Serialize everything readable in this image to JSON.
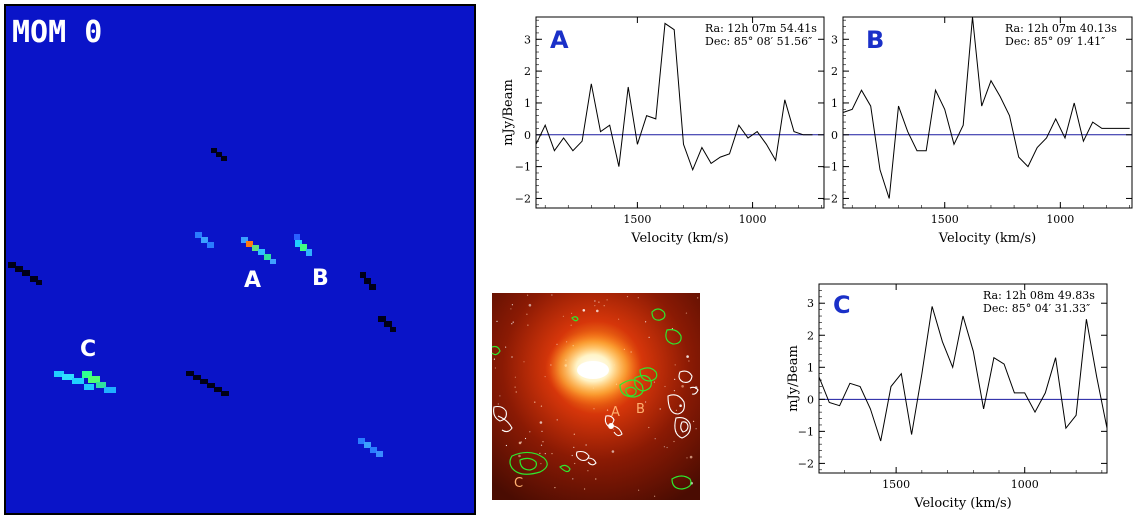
{
  "mom_map": {
    "title": "MOM 0",
    "labels": [
      "A",
      "B",
      "C"
    ],
    "background": "#0a14c8"
  },
  "optical": {
    "labels": [
      "A",
      "B",
      "C"
    ]
  },
  "chart_data": [
    {
      "type": "line",
      "panel": "A",
      "xlabel": "Velocity (km/s)",
      "ylabel": "mJy/Beam",
      "xlim": [
        1940,
        690
      ],
      "ylim": [
        -2.3,
        3.7
      ],
      "xticks": [
        1500,
        1000
      ],
      "yticks": [
        -2,
        -1,
        0,
        1,
        2,
        3
      ],
      "coord_ra": "Ra: 12h 07m 54.41s",
      "coord_dec": "Dec: 85° 08′ 51.56″",
      "x": [
        1940,
        1900,
        1860,
        1820,
        1780,
        1740,
        1700,
        1660,
        1620,
        1580,
        1540,
        1500,
        1460,
        1420,
        1380,
        1340,
        1300,
        1260,
        1220,
        1180,
        1140,
        1100,
        1060,
        1020,
        980,
        940,
        900,
        860,
        820,
        780,
        740
      ],
      "values": [
        -0.3,
        0.3,
        -0.5,
        -0.1,
        -0.5,
        -0.2,
        1.6,
        0.1,
        0.3,
        -1.0,
        1.5,
        -0.3,
        0.6,
        0.5,
        3.5,
        3.3,
        -0.3,
        -1.1,
        -0.4,
        -0.9,
        -0.7,
        -0.6,
        0.3,
        -0.1,
        0.1,
        -0.3,
        -0.8,
        1.1,
        0.1,
        0.0,
        0.0
      ]
    },
    {
      "type": "line",
      "panel": "B",
      "xlabel": "Velocity (km/s)",
      "ylabel": "",
      "xlim": [
        1940,
        690
      ],
      "ylim": [
        -2.3,
        3.7
      ],
      "xticks": [
        1500,
        1000
      ],
      "yticks": [
        -2,
        -1,
        0,
        1,
        2,
        3
      ],
      "coord_ra": "Ra: 12h 07m 40.13s",
      "coord_dec": "Dec: 85° 09′ 1.41″",
      "x": [
        1940,
        1900,
        1860,
        1820,
        1780,
        1740,
        1700,
        1660,
        1620,
        1580,
        1540,
        1500,
        1460,
        1420,
        1380,
        1340,
        1300,
        1260,
        1220,
        1180,
        1140,
        1100,
        1060,
        1020,
        980,
        940,
        900,
        860,
        820,
        780,
        740,
        700
      ],
      "values": [
        0.7,
        0.8,
        1.4,
        0.9,
        -1.1,
        -2.0,
        0.9,
        0.1,
        -0.5,
        -0.5,
        1.4,
        0.8,
        -0.3,
        0.3,
        3.7,
        0.9,
        1.7,
        1.2,
        0.6,
        -0.7,
        -1.0,
        -0.4,
        -0.1,
        0.5,
        -0.1,
        1.0,
        -0.2,
        0.4,
        0.2,
        0.2,
        0.2,
        0.2
      ]
    },
    {
      "type": "line",
      "panel": "C",
      "xlabel": "Velocity (km/s)",
      "ylabel": "mJy/Beam",
      "xlim": [
        1800,
        680
      ],
      "ylim": [
        -2.3,
        3.6
      ],
      "xticks": [
        1500,
        1000
      ],
      "yticks": [
        -2,
        -1,
        0,
        1,
        2,
        3
      ],
      "coord_ra": "Ra: 12h 08m 49.83s",
      "coord_dec": "Dec: 85° 04′ 31.33″",
      "x": [
        1800,
        1760,
        1720,
        1680,
        1640,
        1600,
        1560,
        1520,
        1480,
        1440,
        1400,
        1360,
        1320,
        1280,
        1240,
        1200,
        1160,
        1120,
        1080,
        1040,
        1000,
        960,
        920,
        880,
        840,
        800,
        760,
        720,
        680
      ],
      "values": [
        0.7,
        -0.1,
        -0.2,
        0.5,
        0.4,
        -0.3,
        -1.3,
        0.4,
        0.8,
        -1.1,
        0.8,
        2.9,
        1.8,
        1.0,
        2.6,
        1.5,
        -0.3,
        1.3,
        1.1,
        0.2,
        0.2,
        -0.4,
        0.2,
        1.3,
        -0.9,
        -0.5,
        2.5,
        0.7,
        -0.9
      ]
    }
  ]
}
